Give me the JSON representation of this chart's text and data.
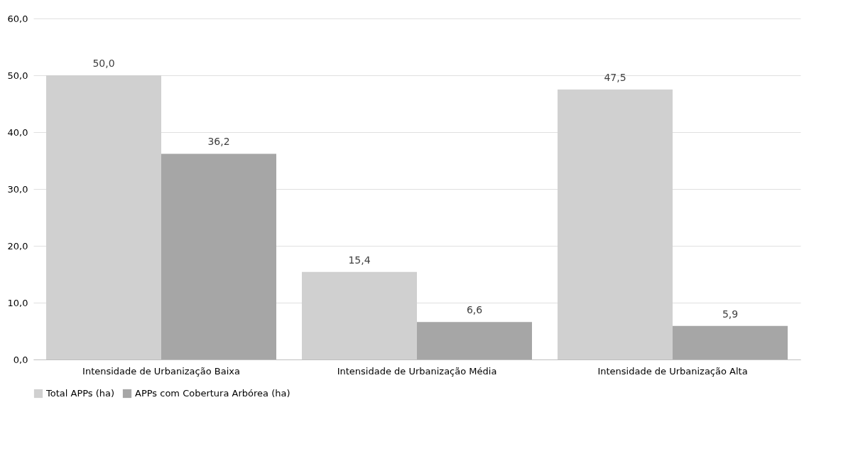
{
  "chart_data": {
    "type": "bar",
    "categories": [
      "Intensidade de Urbanização Baixa",
      "Intensidade de Urbanização Média",
      "Intensidade de Urbanização Alta"
    ],
    "series": [
      {
        "name": "Total APPs (ha)",
        "color": "#d0d0d0",
        "values": [
          50.0,
          15.4,
          47.5
        ],
        "value_labels": [
          "50,0",
          "15,4",
          "47,5"
        ]
      },
      {
        "name": "APPs com Cobertura Arbórea (ha)",
        "color": "#a6a6a6",
        "values": [
          36.2,
          6.6,
          5.9
        ],
        "value_labels": [
          "36,2",
          "6,6",
          "5,9"
        ]
      }
    ],
    "ylim": [
      0,
      60
    ],
    "yticks": [
      {
        "value": 0,
        "label": "0,0"
      },
      {
        "value": 10,
        "label": "10,0"
      },
      {
        "value": 20,
        "label": "20,0"
      },
      {
        "value": 30,
        "label": "30,0"
      },
      {
        "value": 40,
        "label": "40,0"
      },
      {
        "value": 50,
        "label": "50,0"
      },
      {
        "value": 60,
        "label": "60,0"
      }
    ],
    "grid": "y",
    "legend": "bottom"
  }
}
